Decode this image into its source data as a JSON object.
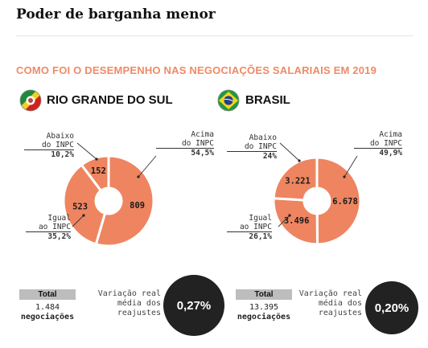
{
  "title": "Poder de barganha menor",
  "subtitle": "COMO FOI O DESEMPENHO NAS NEGOCIAÇÕES SALARIAIS EM 2019",
  "colors": {
    "slice": "#ee8560",
    "accent_text": "#ee8a66",
    "dark": "#222222",
    "total_box": "#bdbdbd"
  },
  "chart_data": [
    {
      "type": "pie",
      "title": "RIO GRANDE DO SUL",
      "flag_icon": "rio-grande-do-sul-flag-icon",
      "categories": [
        "Acima do INPC",
        "Igual ao INPC",
        "Abaixo do INPC"
      ],
      "values": [
        809,
        523,
        152
      ],
      "value_labels": [
        "809",
        "523",
        "152"
      ],
      "percent_labels": [
        "54,5%",
        "35,2%",
        "10,2%"
      ],
      "label_lines": [
        [
          "Acima",
          "do INPC"
        ],
        [
          "Igual",
          "ao INPC"
        ],
        [
          "Abaixo",
          "do INPC"
        ]
      ],
      "total_label": "Total",
      "total_value": "1.484",
      "total_unit": "negociações",
      "variation_label": [
        "Variação real",
        "média dos",
        "reajustes"
      ],
      "variation_value": "0,27%"
    },
    {
      "type": "pie",
      "title": "BRASIL",
      "flag_icon": "brazil-flag-icon",
      "categories": [
        "Acima do INPC",
        "Igual ao INPC",
        "Abaixo do INPC"
      ],
      "values": [
        6678,
        3496,
        3221
      ],
      "value_labels": [
        "6.678",
        "3.496",
        "3.221"
      ],
      "percent_labels": [
        "49,9%",
        "26,1%",
        "24%"
      ],
      "label_lines": [
        [
          "Acima",
          "do INPC"
        ],
        [
          "Igual",
          "ao INPC"
        ],
        [
          "Abaixo",
          "do INPC"
        ]
      ],
      "total_label": "Total",
      "total_value": "13.395",
      "total_unit": "negociações",
      "variation_label": [
        "Variação real",
        "média dos",
        "reajustes"
      ],
      "variation_value": "0,20%"
    }
  ]
}
